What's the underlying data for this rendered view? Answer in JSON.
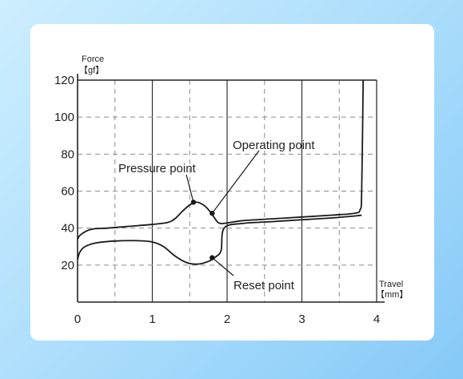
{
  "chart_data": {
    "type": "line",
    "xlabel": "Travel",
    "xunit": "【mm】",
    "ylabel": "Force",
    "yunit": "【gf】",
    "xlim": [
      0,
      4
    ],
    "ylim": [
      0,
      120
    ],
    "xticks": [
      "0",
      "1",
      "2",
      "3",
      "4"
    ],
    "yticks": [
      "20",
      "40",
      "60",
      "80",
      "100",
      "120"
    ],
    "grid": "solid major lines, dashed minor lines",
    "series": [
      {
        "x": [
          0,
          0.03,
          0.1,
          0.2,
          0.4,
          0.7,
          1.0,
          1.2,
          1.3,
          1.4,
          1.5,
          1.6,
          1.7,
          1.78,
          1.84,
          1.88,
          1.95,
          2.2,
          2.6,
          3.0,
          3.4,
          3.7,
          3.78,
          3.8,
          3.82
        ],
        "y": [
          34,
          36,
          38,
          39.5,
          40,
          41,
          42,
          43,
          45,
          49,
          52.5,
          54,
          52,
          48.5,
          45,
          43,
          42.5,
          44,
          45,
          46,
          47,
          48,
          50,
          60,
          120
        ]
      },
      {
        "x": [
          0,
          0.03,
          0.1,
          0.25,
          0.5,
          0.8,
          1.0,
          1.15,
          1.3,
          1.45,
          1.6,
          1.75,
          1.85,
          1.92,
          1.96,
          2.2,
          2.6,
          3.0,
          3.4,
          3.7,
          3.8
        ],
        "y": [
          23,
          27,
          30,
          32,
          33,
          33.2,
          32.5,
          30,
          25,
          21.5,
          20.5,
          22,
          24.5,
          28,
          40,
          42.5,
          43.5,
          44.5,
          45.5,
          46.5,
          47
        ]
      }
    ],
    "annotations": [
      {
        "text": "Pressure point",
        "x": 1.55,
        "y": 54
      },
      {
        "text": "Operating point",
        "x": 1.8,
        "y": 48
      },
      {
        "text": "Reset point",
        "x": 1.8,
        "y": 24
      }
    ]
  }
}
